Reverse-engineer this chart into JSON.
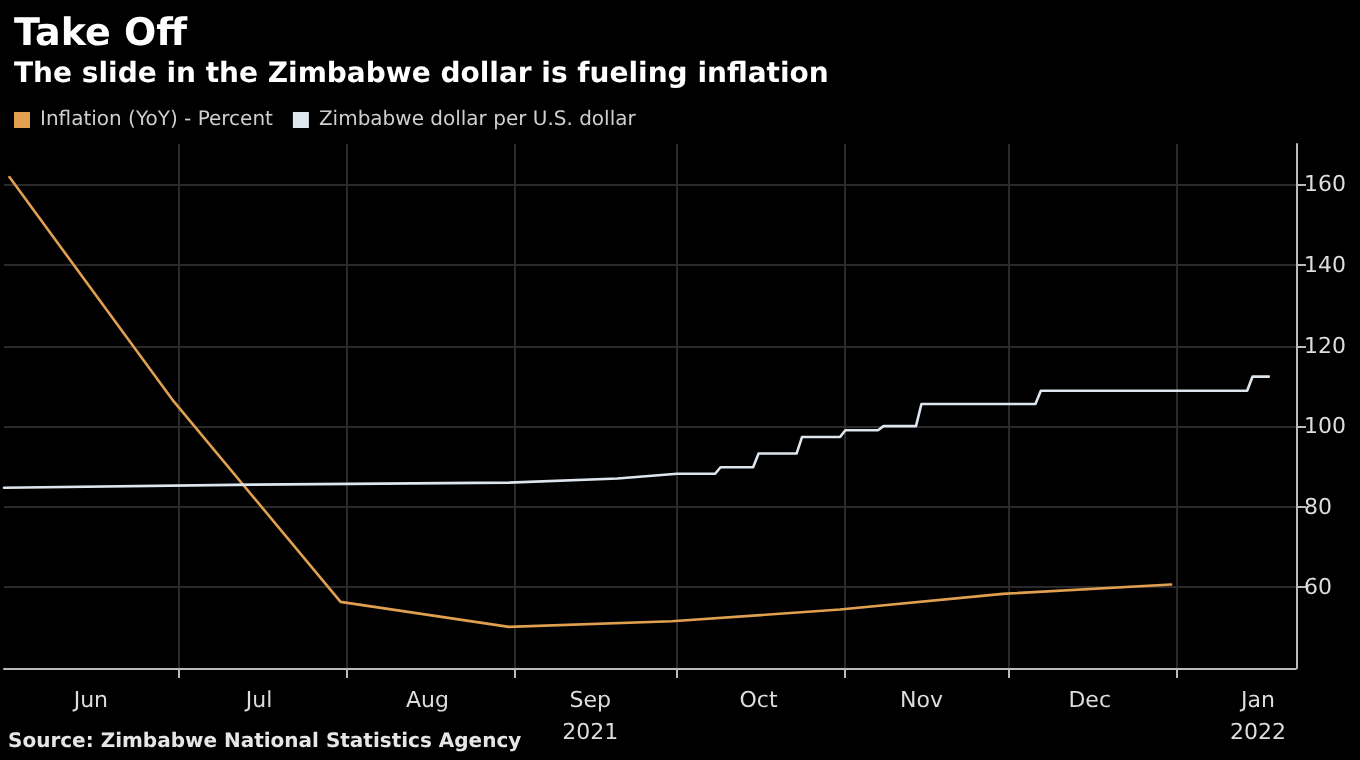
{
  "chart_data": {
    "type": "line",
    "title": "Take Off",
    "subtitle": "The slide in the Zimbabwe dollar is fueling inflation",
    "series": [
      {
        "name": "Inflation (YoY) - Percent",
        "color": "#e0a050",
        "x": [
          "2021-05-31",
          "2021-06-30",
          "2021-07-31",
          "2021-08-31",
          "2021-09-30",
          "2021-10-31",
          "2021-11-30",
          "2021-12-31"
        ],
        "values": [
          161.8,
          106.6,
          56.4,
          50.2,
          51.6,
          54.5,
          58.4,
          60.7
        ]
      },
      {
        "name": "Zimbabwe dollar per U.S. dollar",
        "color": "#dde6ee",
        "x": [
          "2021-05-30",
          "2021-07-15",
          "2021-08-31",
          "2021-09-20",
          "2021-10-01",
          "2021-10-08",
          "2021-10-09",
          "2021-10-15",
          "2021-10-16",
          "2021-10-23",
          "2021-10-24",
          "2021-10-31",
          "2021-11-01",
          "2021-11-07",
          "2021-11-08",
          "2021-11-14",
          "2021-11-15",
          "2021-12-06",
          "2021-12-07",
          "2022-01-14",
          "2022-01-15",
          "2022-01-18"
        ],
        "values": [
          84.7,
          85.5,
          86,
          87,
          88.2,
          88.2,
          89.8,
          89.8,
          93.2,
          93.2,
          97.3,
          97.3,
          99,
          99,
          100,
          100,
          105.5,
          105.5,
          108.8,
          108.8,
          112.3,
          112.3
        ]
      }
    ],
    "xlim": [
      "2021-05-30",
      "2022-01-23"
    ],
    "xticks": [
      {
        "value": "2021-06-15",
        "label": "Jun"
      },
      {
        "value": "2021-07-01",
        "label": null
      },
      {
        "value": "2021-07-16",
        "label": "Jul"
      },
      {
        "value": "2021-08-01",
        "label": null
      },
      {
        "value": "2021-08-16",
        "label": "Aug"
      },
      {
        "value": "2021-09-01",
        "label": null
      },
      {
        "value": "2021-09-15",
        "label": "Sep\n2021"
      },
      {
        "value": "2021-10-01",
        "label": null
      },
      {
        "value": "2021-10-16",
        "label": "Oct"
      },
      {
        "value": "2021-11-01",
        "label": null
      },
      {
        "value": "2021-11-15",
        "label": "Nov"
      },
      {
        "value": "2021-12-01",
        "label": null
      },
      {
        "value": "2021-12-16",
        "label": "Dec"
      },
      {
        "value": "2022-01-01",
        "label": null
      },
      {
        "value": "2022-01-16",
        "label": "Jan\n2022"
      }
    ],
    "ylim": [
      40,
      170
    ],
    "yticks": [
      60,
      80,
      100,
      120,
      140,
      160
    ],
    "grid": true,
    "legend": "top left",
    "marker": "none",
    "line_style": "solid",
    "annotations": [
      "Source: Zimbabwe National Statistics Agency"
    ]
  }
}
